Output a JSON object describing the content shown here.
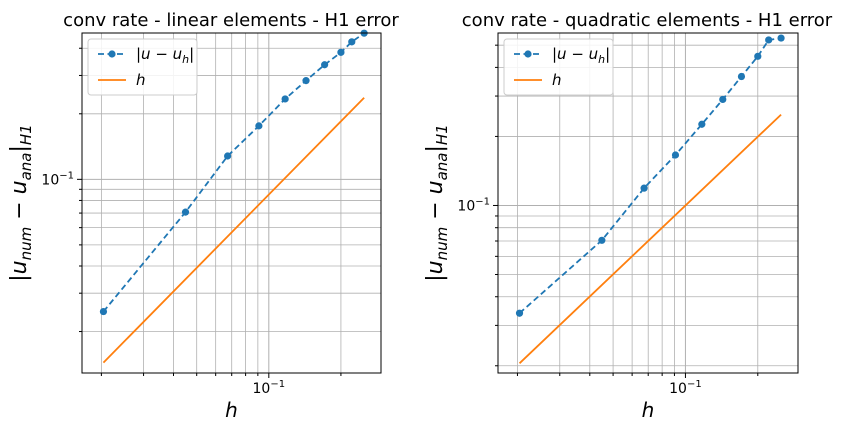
{
  "chart_data": [
    {
      "type": "line",
      "title": "conv rate - linear elements - H1 error",
      "xlabel": "h",
      "ylabel": "|u_num − u_ana|_H1",
      "xscale": "log",
      "yscale": "log",
      "xlim": [
        0.0166,
        0.294
      ],
      "ylim": [
        0.0129,
        0.47
      ],
      "grid": "major and minor",
      "legend_position": "top-left",
      "xticks": [
        {
          "value": 0.1,
          "label": "10",
          "sup": "−1"
        }
      ],
      "yticks": [
        {
          "value": 0.1,
          "label": "10",
          "sup": "−1"
        }
      ],
      "series": [
        {
          "name": "|u − u_h|",
          "color": "#1f77b4",
          "style": "dashed",
          "marker": "circle",
          "x": [
            0.0204,
            0.0449,
            0.0673,
            0.0909,
            0.117,
            0.143,
            0.171,
            0.2,
            0.222,
            0.25
          ],
          "y": [
            0.0247,
            0.0707,
            0.128,
            0.176,
            0.234,
            0.284,
            0.336,
            0.383,
            0.428,
            0.469
          ]
        },
        {
          "name": "h",
          "color": "#ff7f0e",
          "style": "solid",
          "marker": "none",
          "x": [
            0.0204,
            0.25
          ],
          "y": [
            0.0144,
            0.237
          ]
        }
      ]
    },
    {
      "type": "line",
      "title": "conv rate - quadratic elements - H1 error",
      "xlabel": "h",
      "ylabel": "|u_num − u_ana|_H1",
      "xscale": "log",
      "yscale": "log",
      "xlim": [
        0.0166,
        0.294
      ],
      "ylim": [
        0.0186,
        0.565
      ],
      "grid": "major and minor",
      "legend_position": "top-left",
      "xticks": [
        {
          "value": 0.1,
          "label": "10",
          "sup": "−1"
        }
      ],
      "yticks": [
        {
          "value": 0.1,
          "label": "10",
          "sup": "−1"
        }
      ],
      "series": [
        {
          "name": "|u − u_h|",
          "color": "#1f77b4",
          "style": "dashed",
          "marker": "circle",
          "x": [
            0.0204,
            0.0449,
            0.0673,
            0.0909,
            0.117,
            0.143,
            0.171,
            0.2,
            0.222,
            0.25
          ],
          "y": [
            0.0339,
            0.0705,
            0.119,
            0.166,
            0.226,
            0.29,
            0.365,
            0.447,
            0.527,
            0.537
          ]
        },
        {
          "name": "h",
          "color": "#ff7f0e",
          "style": "solid",
          "marker": "none",
          "x": [
            0.0204,
            0.25
          ],
          "y": [
            0.0205,
            0.249
          ]
        }
      ]
    }
  ],
  "legend_labels": {
    "error_base": "|u − u",
    "error_sub": "h",
    "error_tail": "|",
    "h": "h"
  },
  "axis_text": {
    "xlabel": "h",
    "ylabel_base": "|u",
    "ylabel_sub1": "num",
    "ylabel_mid": " − u",
    "ylabel_sub2": "ana",
    "ylabel_tail": "|",
    "ylabel_sub3": "H1"
  }
}
